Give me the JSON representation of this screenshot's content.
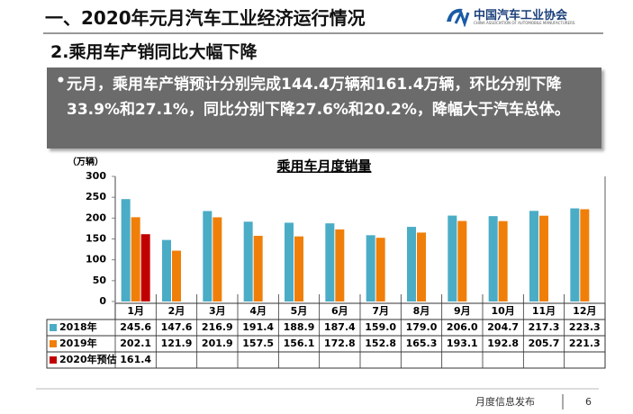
{
  "header": {
    "title": "一、2020年元月汽车工业经济运行情况",
    "logo_name": "中国汽车工业协会",
    "logo_sub": "CHINA ASSOCIATION OF AUTOMOBILE MANUFACTURERS"
  },
  "subtitle": "2.乘用车产销同比大幅下降",
  "bullet": "元月，乘用车产销预计分别完成144.4万辆和161.4万辆，环比分别下降33.9%和27.1%，同比分别下降27.6%和20.2%，降幅大于汽车总体。",
  "chart_data": {
    "type": "bar",
    "title": "乘用车月度销量",
    "y_unit": "（万辆）",
    "categories": [
      "1月",
      "2月",
      "3月",
      "4月",
      "5月",
      "6月",
      "7月",
      "8月",
      "9月",
      "10月",
      "11月",
      "12月"
    ],
    "series": [
      {
        "name": "2018年",
        "color": "#4bacc6",
        "values": [
          245.6,
          147.6,
          216.9,
          191.4,
          188.9,
          187.4,
          159.0,
          179.0,
          206.0,
          204.7,
          217.3,
          223.3
        ],
        "value_labels": [
          "245.6",
          "147.6",
          "216.9",
          "191.4",
          "188.9",
          "187.4",
          "159.0",
          "179.0",
          "206.0",
          "204.7",
          "217.3",
          "223.3"
        ]
      },
      {
        "name": "2019年",
        "color": "#f07f09",
        "values": [
          202.1,
          121.9,
          201.9,
          157.5,
          156.1,
          172.8,
          152.8,
          165.3,
          193.1,
          192.8,
          205.7,
          221.3
        ],
        "value_labels": [
          "202.1",
          "121.9",
          "201.9",
          "157.5",
          "156.1",
          "172.8",
          "152.8",
          "165.3",
          "193.1",
          "192.8",
          "205.7",
          "221.3"
        ]
      },
      {
        "name": "2020年预估",
        "color": "#c00000",
        "values": [
          161.4,
          null,
          null,
          null,
          null,
          null,
          null,
          null,
          null,
          null,
          null,
          null
        ]
      }
    ],
    "ylim": [
      0,
      300
    ],
    "yticks": [
      0,
      50,
      100,
      150,
      200,
      250,
      300
    ],
    "grid": false
  },
  "footer": {
    "text": "月度信息发布",
    "page": "6"
  }
}
